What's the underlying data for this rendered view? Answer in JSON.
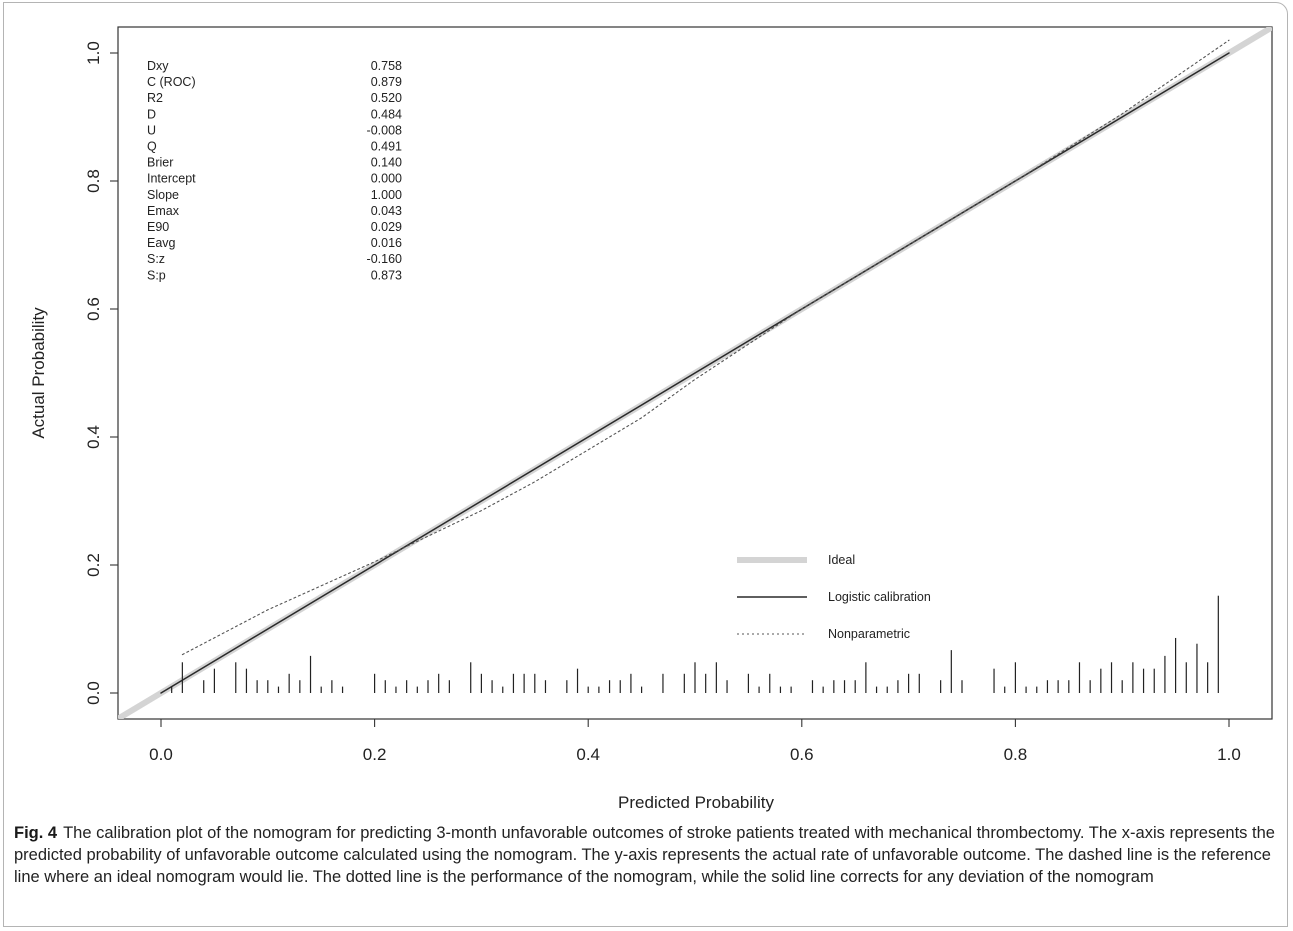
{
  "chart_data": {
    "type": "line",
    "title": "",
    "xlabel": "Predicted Probability",
    "ylabel": "Actual Probability",
    "xlim": [
      -0.04,
      1.04
    ],
    "ylim": [
      -0.04,
      1.04
    ],
    "x_ticks": [
      "0.0",
      "0.2",
      "0.4",
      "0.6",
      "0.8",
      "1.0"
    ],
    "y_ticks": [
      "0.0",
      "0.2",
      "0.4",
      "0.6",
      "0.8",
      "1.0"
    ],
    "grid": false,
    "legend_position": "bottom-right",
    "stats": [
      {
        "label": "Dxy",
        "value": "0.758"
      },
      {
        "label": "C (ROC)",
        "value": "0.879"
      },
      {
        "label": "R2",
        "value": "0.520"
      },
      {
        "label": "D",
        "value": "0.484"
      },
      {
        "label": "U",
        "value": "-0.008"
      },
      {
        "label": "Q",
        "value": "0.491"
      },
      {
        "label": "Brier",
        "value": "0.140"
      },
      {
        "label": "Intercept",
        "value": "0.000"
      },
      {
        "label": "Slope",
        "value": "1.000"
      },
      {
        "label": "Emax",
        "value": "0.043"
      },
      {
        "label": "E90",
        "value": "0.029"
      },
      {
        "label": "Eavg",
        "value": "0.016"
      },
      {
        "label": "S:z",
        "value": "-0.160"
      },
      {
        "label": "S:p",
        "value": "0.873"
      }
    ],
    "series": [
      {
        "name": "Ideal",
        "style": "thick-light",
        "color": "#d4d4d4",
        "x": [
          -0.04,
          1.04
        ],
        "y": [
          -0.04,
          1.04
        ]
      },
      {
        "name": "Logistic calibration",
        "style": "solid",
        "color": "#2a2a2a",
        "x": [
          0.0,
          1.0
        ],
        "y": [
          0.0,
          1.0
        ]
      },
      {
        "name": "Nonparametric",
        "style": "dotted",
        "color": "#555555",
        "x": [
          0.02,
          0.1,
          0.2,
          0.3,
          0.35,
          0.4,
          0.45,
          0.5,
          0.55,
          0.6,
          0.7,
          0.8,
          0.9,
          1.0
        ],
        "y": [
          0.06,
          0.13,
          0.205,
          0.285,
          0.33,
          0.38,
          0.43,
          0.49,
          0.545,
          0.6,
          0.7,
          0.8,
          0.905,
          1.02
        ]
      }
    ],
    "rug": {
      "x": [
        0.01,
        0.02,
        0.04,
        0.05,
        0.07,
        0.08,
        0.09,
        0.1,
        0.11,
        0.12,
        0.13,
        0.14,
        0.15,
        0.16,
        0.17,
        0.2,
        0.21,
        0.22,
        0.23,
        0.24,
        0.25,
        0.26,
        0.27,
        0.29,
        0.3,
        0.31,
        0.32,
        0.33,
        0.34,
        0.35,
        0.36,
        0.38,
        0.39,
        0.4,
        0.41,
        0.42,
        0.43,
        0.44,
        0.45,
        0.47,
        0.49,
        0.5,
        0.51,
        0.52,
        0.53,
        0.55,
        0.56,
        0.57,
        0.58,
        0.59,
        0.61,
        0.62,
        0.63,
        0.64,
        0.65,
        0.66,
        0.67,
        0.68,
        0.69,
        0.7,
        0.71,
        0.73,
        0.74,
        0.75,
        0.78,
        0.79,
        0.8,
        0.81,
        0.82,
        0.83,
        0.84,
        0.85,
        0.86,
        0.87,
        0.88,
        0.89,
        0.9,
        0.91,
        0.92,
        0.93,
        0.94,
        0.95,
        0.96,
        0.97,
        0.98,
        0.99
      ],
      "h": [
        0.01,
        0.048,
        0.02,
        0.038,
        0.048,
        0.038,
        0.02,
        0.02,
        0.01,
        0.03,
        0.02,
        0.058,
        0.01,
        0.02,
        0.01,
        0.03,
        0.02,
        0.01,
        0.02,
        0.01,
        0.02,
        0.03,
        0.02,
        0.048,
        0.03,
        0.02,
        0.01,
        0.03,
        0.03,
        0.03,
        0.02,
        0.02,
        0.038,
        0.01,
        0.01,
        0.02,
        0.02,
        0.03,
        0.01,
        0.03,
        0.03,
        0.048,
        0.03,
        0.048,
        0.02,
        0.03,
        0.01,
        0.03,
        0.01,
        0.01,
        0.02,
        0.01,
        0.02,
        0.02,
        0.02,
        0.048,
        0.01,
        0.01,
        0.02,
        0.03,
        0.03,
        0.02,
        0.067,
        0.02,
        0.038,
        0.01,
        0.048,
        0.01,
        0.01,
        0.02,
        0.02,
        0.02,
        0.048,
        0.02,
        0.038,
        0.048,
        0.02,
        0.048,
        0.038,
        0.038,
        0.058,
        0.086,
        0.048,
        0.077,
        0.048,
        0.152
      ]
    }
  },
  "caption": {
    "label": "Fig. 4",
    "text": "The calibration plot of the nomogram for predicting 3-month unfavorable outcomes of stroke patients treated with mechanical thrombectomy. The x-axis represents the predicted probability of unfavorable outcome calculated using the nomogram. The y-axis represents the actual rate of unfavorable outcome. The dashed line is the reference line where an ideal nomogram would lie. The dotted line is the performance of the nomogram, while the solid line corrects for any deviation of the nomogram"
  }
}
